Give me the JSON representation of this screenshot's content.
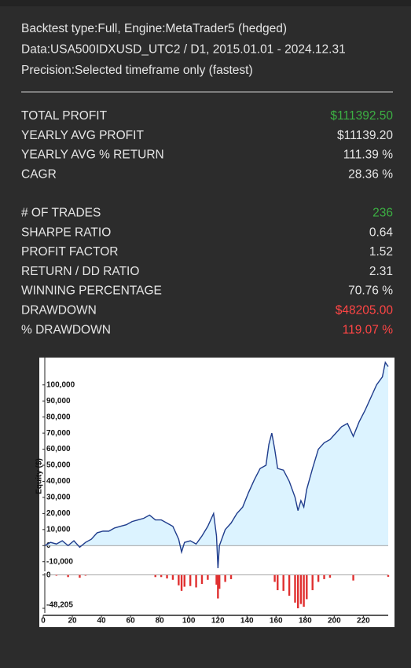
{
  "header": [
    "Backtest type:Full, Engine:MetaTrader5 (hedged)",
    "Data:USA500IDXUSD_UTC2 / D1, 2015.01.01 - 2024.12.31",
    "Precision:Selected timeframe only (fastest)"
  ],
  "stats": [
    [
      {
        "label": "TOTAL PROFIT",
        "value": "$111392.50",
        "color": "#3cb043"
      },
      {
        "label": "YEARLY AVG PROFIT",
        "value": "$11139.20",
        "color": "#e6e6e6"
      },
      {
        "label": "YEARLY AVG % RETURN",
        "value": "111.39 %",
        "color": "#e6e6e6"
      },
      {
        "label": "CAGR",
        "value": "28.36 %",
        "color": "#e6e6e6"
      }
    ],
    [
      {
        "label": "# OF TRADES",
        "value": "236",
        "color": "#3cb043"
      },
      {
        "label": "SHARPE RATIO",
        "value": "0.64",
        "color": "#e6e6e6"
      },
      {
        "label": "PROFIT FACTOR",
        "value": "1.52",
        "color": "#e6e6e6"
      },
      {
        "label": "RETURN / DD RATIO",
        "value": "2.31",
        "color": "#e6e6e6"
      },
      {
        "label": "WINNING PERCENTAGE",
        "value": "70.76 %",
        "color": "#e6e6e6"
      },
      {
        "label": "DRAWDOWN",
        "value": "$48205.00",
        "color": "#ff4545"
      },
      {
        "label": "% DRAWDOWN",
        "value": "119.07 %",
        "color": "#ff4545"
      }
    ]
  ],
  "chart_data": [
    {
      "type": "area",
      "y_label": "Equity ($)",
      "xlim": [
        0,
        236
      ],
      "ylim": [
        -16000,
        117000
      ],
      "yticks": [
        {
          "value": -10000,
          "label": "-10,000"
        },
        0,
        {
          "value": 10000,
          "label": "10,000"
        },
        {
          "value": 20000,
          "label": "20,000"
        },
        {
          "value": 30000,
          "label": "30,000"
        },
        {
          "value": 40000,
          "label": "40,000"
        },
        {
          "value": 50000,
          "label": "50,000"
        },
        {
          "value": 60000,
          "label": "60,000"
        },
        {
          "value": 70000,
          "label": "70,000"
        },
        {
          "value": 80000,
          "label": "80,000"
        },
        {
          "value": 90000,
          "label": "90,000"
        },
        {
          "value": 100000,
          "label": "100,000"
        }
      ],
      "x": [
        0,
        4,
        8,
        12,
        16,
        20,
        24,
        28,
        32,
        36,
        40,
        44,
        48,
        52,
        56,
        60,
        64,
        68,
        72,
        76,
        80,
        84,
        88,
        92,
        94,
        96,
        100,
        104,
        108,
        112,
        116,
        118,
        119,
        120,
        124,
        128,
        132,
        136,
        140,
        144,
        148,
        152,
        154,
        156,
        158,
        160,
        164,
        168,
        172,
        174,
        176,
        178,
        180,
        184,
        188,
        192,
        196,
        200,
        204,
        208,
        212,
        216,
        220,
        224,
        228,
        232,
        234,
        236
      ],
      "series": [
        {
          "name": "Equity",
          "color": "#1f3c8c",
          "fill": "#dcf3ff",
          "values": [
            0,
            2000,
            1000,
            3000,
            0,
            3000,
            -1000,
            2000,
            4000,
            8000,
            9000,
            9000,
            11000,
            12000,
            13000,
            15000,
            16000,
            17000,
            19000,
            16000,
            16000,
            14000,
            12000,
            4000,
            -4000,
            2000,
            3000,
            1000,
            6000,
            12000,
            20000,
            6000,
            -14000,
            0,
            10000,
            14000,
            20000,
            24000,
            33000,
            41000,
            48000,
            50000,
            63000,
            70000,
            60000,
            48000,
            47000,
            40000,
            30000,
            21795,
            28000,
            24000,
            35000,
            48000,
            60000,
            64000,
            66000,
            70000,
            74000,
            76000,
            68000,
            77000,
            84000,
            92000,
            100000,
            105000,
            114000,
            111392
          ]
        }
      ]
    },
    {
      "type": "bar",
      "xlim": [
        0,
        236
      ],
      "ylim": [
        -55000,
        3000
      ],
      "xticks": [
        0,
        20,
        40,
        60,
        80,
        100,
        120,
        140,
        160,
        180,
        200,
        220
      ],
      "yticks": [
        0,
        {
          "value": -48205,
          "label": "-48,205"
        }
      ],
      "x": [
        0,
        4,
        8,
        12,
        16,
        20,
        24,
        28,
        32,
        36,
        40,
        44,
        48,
        52,
        56,
        60,
        64,
        68,
        72,
        76,
        80,
        84,
        88,
        92,
        94,
        96,
        100,
        104,
        108,
        112,
        116,
        118,
        119,
        120,
        124,
        128,
        132,
        136,
        140,
        144,
        148,
        152,
        154,
        156,
        158,
        160,
        164,
        168,
        172,
        174,
        176,
        178,
        180,
        184,
        188,
        192,
        196,
        200,
        204,
        208,
        212,
        216,
        220,
        224,
        228,
        232,
        234,
        236
      ],
      "series": [
        {
          "name": "Drawdown",
          "color": "#e03030",
          "values": [
            0,
            0,
            -1000,
            0,
            -3000,
            0,
            -4000,
            -1000,
            0,
            0,
            0,
            0,
            0,
            0,
            0,
            0,
            0,
            0,
            0,
            -3000,
            -3000,
            -5000,
            -7000,
            -15000,
            -23000,
            -17000,
            -16000,
            -18000,
            -13000,
            -7000,
            0,
            -14000,
            -34000,
            -20000,
            -10000,
            -6000,
            0,
            0,
            0,
            0,
            0,
            0,
            0,
            0,
            -10000,
            -22000,
            -23000,
            -30000,
            -40000,
            -48205,
            -42000,
            -46000,
            -35000,
            -22000,
            -10000,
            -6000,
            -4000,
            0,
            0,
            0,
            -8000,
            0,
            0,
            0,
            0,
            0,
            0,
            -2608
          ]
        }
      ]
    }
  ]
}
